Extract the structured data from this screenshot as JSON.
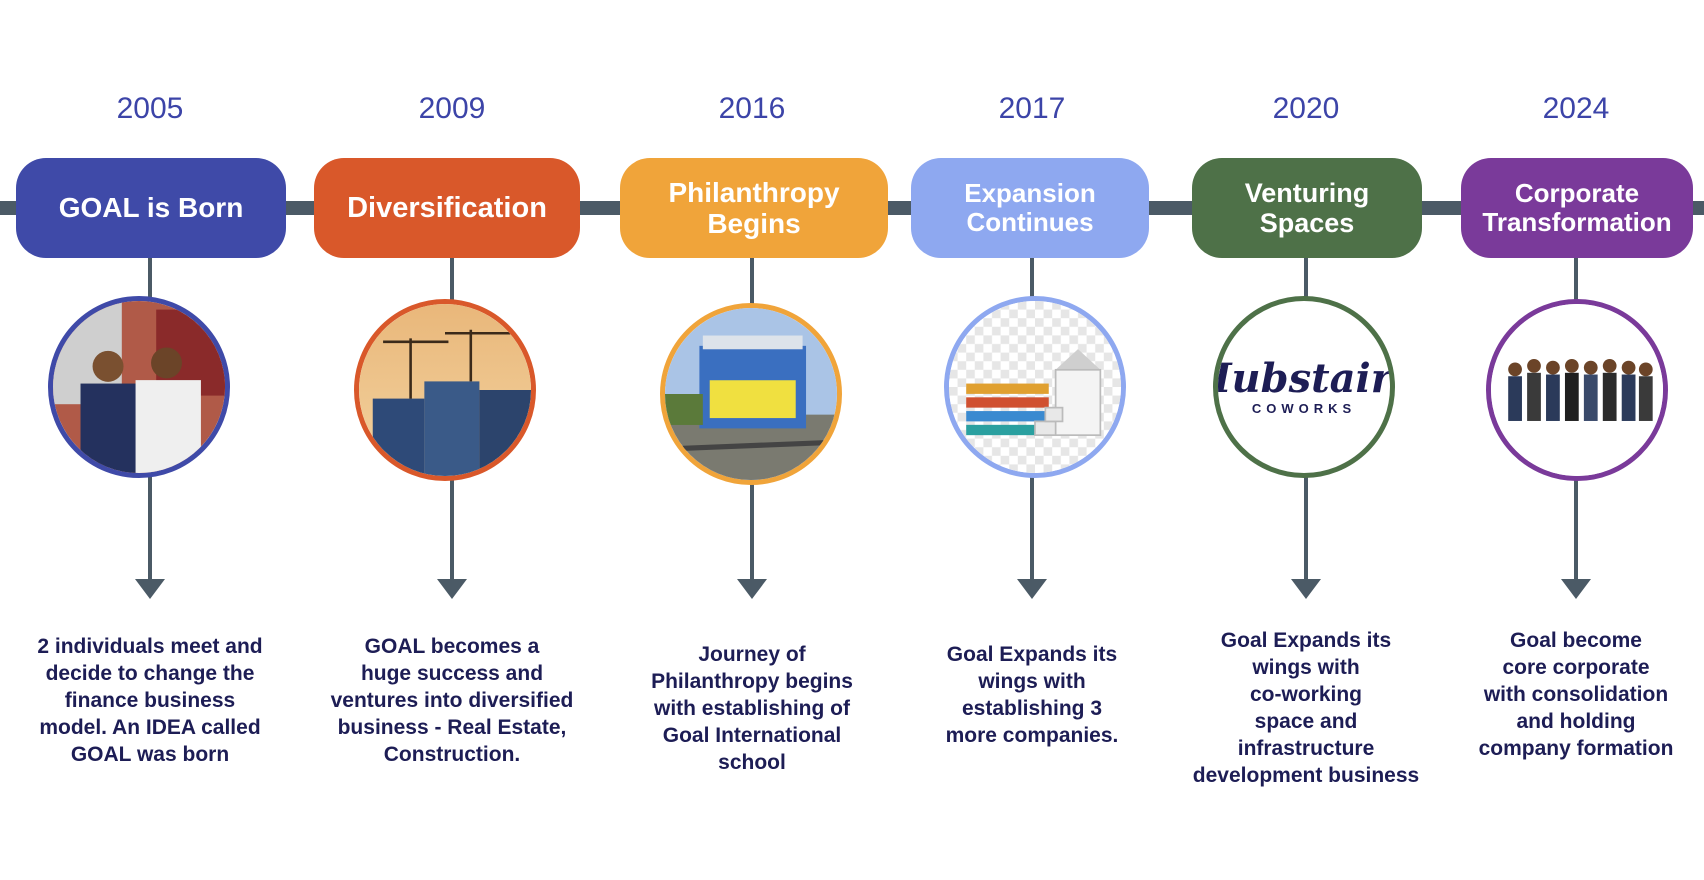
{
  "timeline": [
    {
      "year": "2005",
      "title": "GOAL is Born",
      "image": "two-founders-photo",
      "description": "2 individuals meet and\ndecide to change the\nfinance business\nmodel. An IDEA called\nGOAL was born",
      "color": "#3f4aa8"
    },
    {
      "year": "2009",
      "title": "Diversification",
      "image": "construction-site-photo",
      "description": "GOAL becomes a\nhuge success and\nventures into diversified\nbusiness - Real Estate,\nConstruction.",
      "color": "#d9582a"
    },
    {
      "year": "2016",
      "title": "Philanthropy\nBegins",
      "image": "school-building-photo",
      "description": "Journey of\nPhilanthropy begins\nwith establishing of\nGoal International\nschool",
      "color": "#f0a43a"
    },
    {
      "year": "2017",
      "title": "Expansion\nContinues",
      "image": "growth-steps-illustration",
      "description": "Goal Expands its\nwings with\nestablishing 3\nmore companies.",
      "color": "#8ea8f0"
    },
    {
      "year": "2020",
      "title": "Venturing\nSpaces",
      "image": "hubstairs-logo",
      "logo_text": "Hubstairs",
      "logo_subtext": "COWORKS",
      "description": "Goal Expands its\nwings with\nco-working\n space and\ninfrastructure\ndevelopment business",
      "color": "#4e7148"
    },
    {
      "year": "2024",
      "title": "Corporate\nTransformation",
      "image": "team-group-photo",
      "description": "Goal become\ncore corporate\nwith consolidation\n and holding\ncompany formation",
      "color": "#7a3a9a"
    }
  ]
}
